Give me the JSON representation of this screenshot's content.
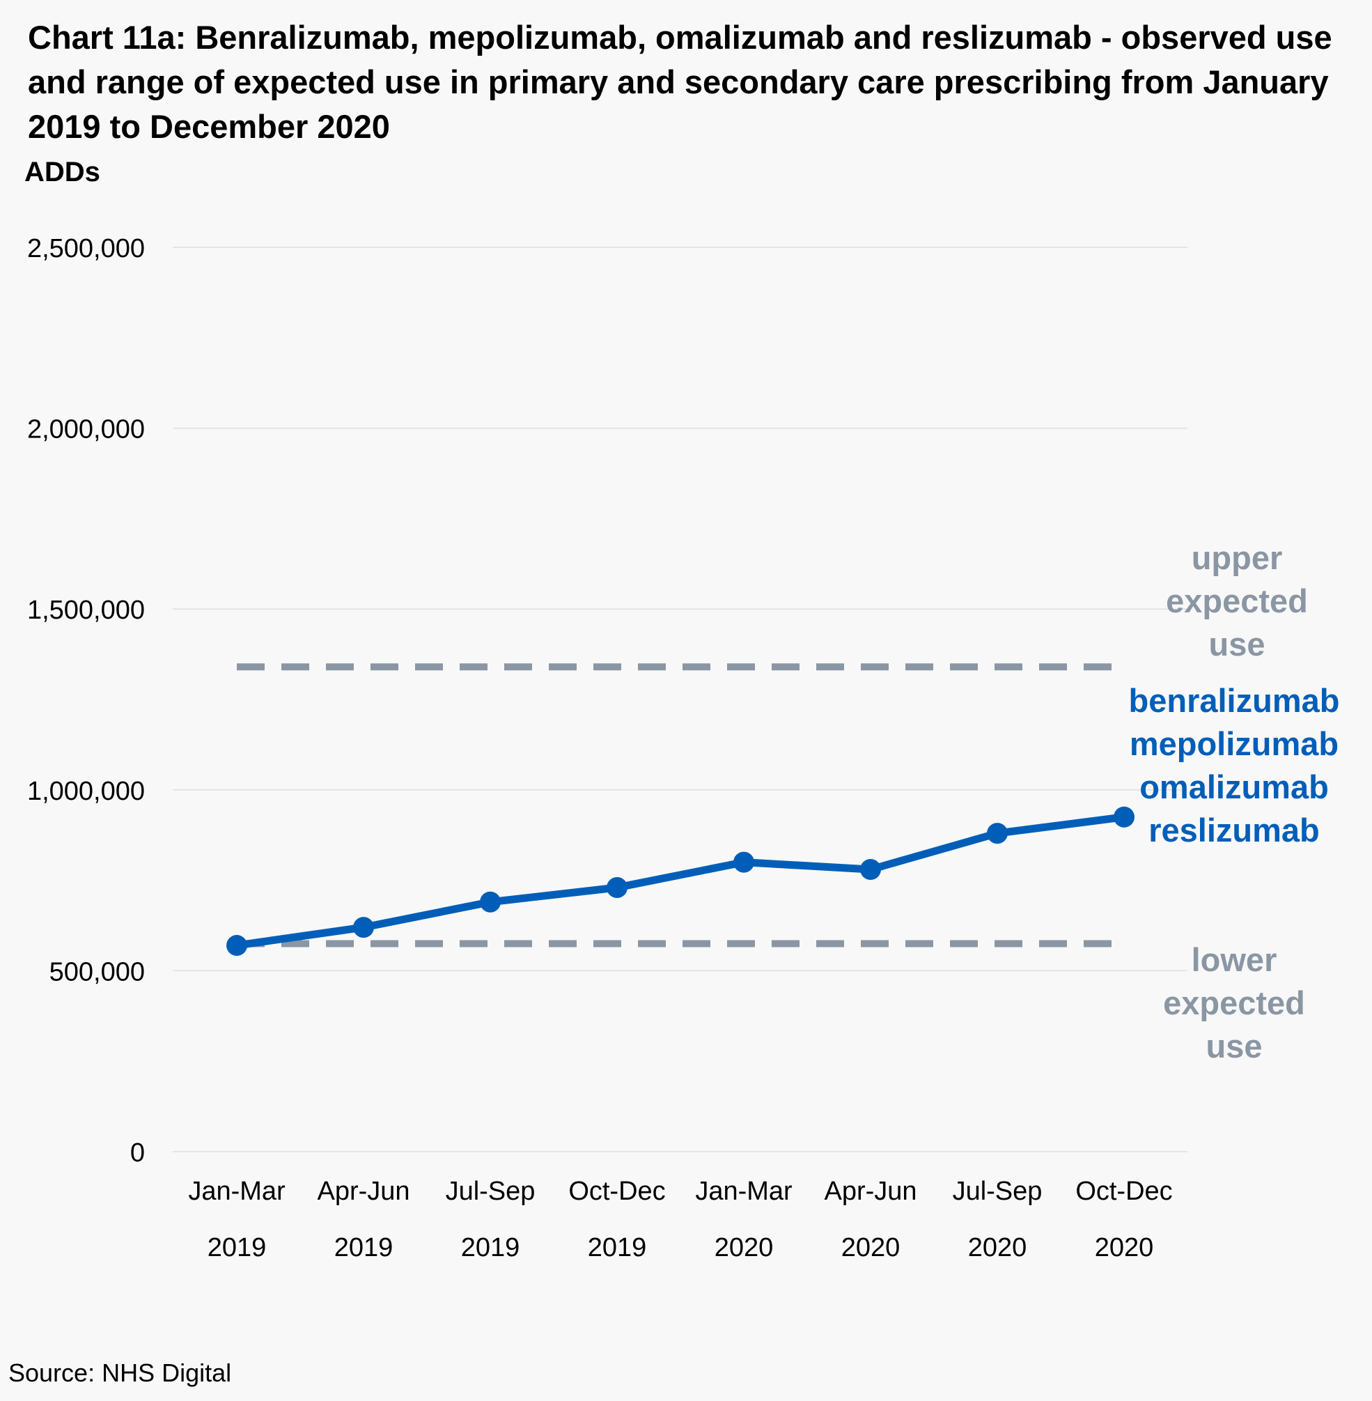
{
  "chart_data": {
    "type": "line",
    "title": "Chart 11a: Benralizumab, mepolizumab, omalizumab and reslizumab  - observed use and range of expected use in primary and secondary care prescribing from January 2019 to December 2020",
    "ylabel": "ADDs",
    "xlabel": "",
    "ylim": [
      0,
      2500000
    ],
    "yticks": [
      0,
      500000,
      1000000,
      1500000,
      2000000,
      2500000
    ],
    "ytick_labels": [
      "0",
      "500,000",
      "1,000,000",
      "1,500,000",
      "2,000,000",
      "2,500,000"
    ],
    "categories": [
      [
        "Jan-Mar",
        "2019"
      ],
      [
        "Apr-Jun",
        "2019"
      ],
      [
        "Jul-Sep",
        "2019"
      ],
      [
        "Oct-Dec",
        "2019"
      ],
      [
        "Jan-Mar",
        "2020"
      ],
      [
        "Apr-Jun",
        "2020"
      ],
      [
        "Jul-Sep",
        "2020"
      ],
      [
        "Oct-Dec",
        "2020"
      ]
    ],
    "grid": true,
    "series": [
      {
        "name": "benralizumab mepolizumab omalizumab reslizumab",
        "label_lines": [
          "benralizumab",
          "mepolizumab",
          "omalizumab",
          "reslizumab"
        ],
        "values": [
          570000,
          620000,
          690000,
          730000,
          800000,
          780000,
          880000,
          925000
        ],
        "color": "#005eb8",
        "style": "solid-markers"
      },
      {
        "name": "upper expected use",
        "label_lines": [
          "upper",
          "expected",
          "use"
        ],
        "values": [
          1340000,
          1340000,
          1340000,
          1340000,
          1340000,
          1340000,
          1340000,
          1340000
        ],
        "color": "#8a96a3",
        "style": "dashed"
      },
      {
        "name": "lower expected use",
        "label_lines": [
          "lower",
          "expected",
          "use"
        ],
        "values": [
          575000,
          575000,
          575000,
          575000,
          575000,
          575000,
          575000,
          575000
        ],
        "color": "#8a96a3",
        "style": "dashed"
      }
    ]
  },
  "source": "Source: NHS Digital"
}
